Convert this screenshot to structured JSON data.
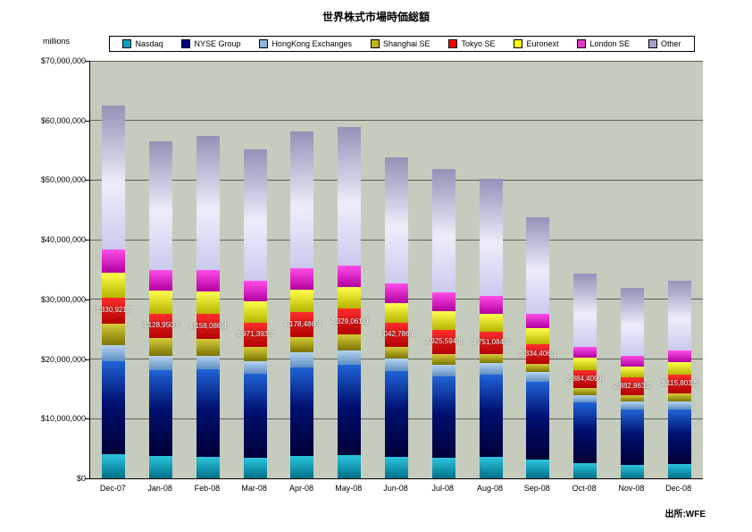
{
  "page": {
    "title": "世界株式市場時価総額",
    "unit_label": "millions",
    "source_note": "出所:WFE"
  },
  "legend": {
    "items": [
      {
        "id": "nasdaq",
        "label": "Nasdaq",
        "color": "#00A5C0"
      },
      {
        "id": "nyse-group",
        "label": "NYSE Group",
        "color": "#000080"
      },
      {
        "id": "hongkong-exchanges",
        "label": "HongKong Exchanges",
        "color": "#8DB4E2"
      },
      {
        "id": "shanghai-se",
        "label": "Shanghai SE",
        "color": "#BDB520"
      },
      {
        "id": "tokyo-se",
        "label": "Tokyo SE",
        "color": "#FF0000"
      },
      {
        "id": "euronext",
        "label": "Euronext",
        "color": "#FFFF00"
      },
      {
        "id": "london-se",
        "label": "London SE",
        "color": "#E23BC8"
      },
      {
        "id": "other",
        "label": "Other",
        "color": "#A3A3CC"
      }
    ]
  },
  "chart_data": {
    "type": "bar",
    "stacked": true,
    "title": "世界株式市場時価総額",
    "xlabel": "",
    "ylabel": "millions",
    "ylim": [
      0,
      70000000
    ],
    "grid": true,
    "legend_position": "top",
    "plot_bg_color": "#C6CCBD",
    "ytick_values": [
      0,
      10000000,
      20000000,
      30000000,
      40000000,
      50000000,
      60000000,
      70000000
    ],
    "ytick_labels": [
      "$0",
      "$10,000,000",
      "$20,000,000",
      "$30,000,000",
      "$40,000,000",
      "$50,000,000",
      "$60,000,000",
      "$70,000,000"
    ],
    "categories": [
      "Dec-07",
      "Jan-08",
      "Feb-08",
      "Mar-08",
      "Apr-08",
      "May-08",
      "Jun-08",
      "Jul-08",
      "Aug-08",
      "Sep-08",
      "Oct-08",
      "Nov-08",
      "Dec-08"
    ],
    "series": [
      {
        "name": "Nasdaq",
        "gradient": [
          "#006F87 0%",
          "#2CC5DF 100%"
        ],
        "values": [
          4000000,
          3700000,
          3600000,
          3500000,
          3800000,
          3900000,
          3600000,
          3500000,
          3600000,
          3200000,
          2500000,
          2300000,
          2400000
        ]
      },
      {
        "name": "NYSE Group",
        "gradient": [
          "#000038 0%",
          "#001070 55%",
          "#2063D6 100%"
        ],
        "values": [
          15650000,
          14500000,
          14700000,
          14100000,
          14800000,
          15200000,
          14400000,
          13600000,
          13800000,
          13000000,
          10200000,
          9300000,
          9200000
        ]
      },
      {
        "name": "HongKong Exchanges",
        "gradient": [
          "#5E8FC4 0%",
          "#B6D3EE 100%"
        ],
        "values": [
          2650000,
          2300000,
          2300000,
          2100000,
          2500000,
          2400000,
          2100000,
          2000000,
          1900000,
          1600000,
          1300000,
          1300000,
          1300000
        ]
      },
      {
        "name": "Shanghai SE",
        "gradient": [
          "#7A7400 0%",
          "#D6CC3A 100%"
        ],
        "values": [
          3700000,
          3000000,
          2800000,
          2400000,
          2600000,
          2600000,
          2000000,
          1800000,
          1600000,
          1400000,
          1200000,
          1100000,
          1400000
        ]
      },
      {
        "name": "Tokyo SE",
        "gradient": [
          "#B20000 0%",
          "#FF2D2D 100%"
        ],
        "values": [
          4330921.7,
          4128950.5,
          4158086.4,
          3971393.7,
          4178486.4,
          4329061.9,
          4042786.6,
          3925594.5,
          3751084.8,
          3334406.1,
          2884409.6,
          2882863.2,
          3115803.5
        ]
      },
      {
        "name": "Euronext",
        "gradient": [
          "#B5B500 0%",
          "#FFFF4D 100%"
        ],
        "values": [
          4200000,
          3800000,
          3800000,
          3600000,
          3700000,
          3700000,
          3300000,
          3200000,
          3000000,
          2600000,
          2100000,
          1900000,
          2100000
        ]
      },
      {
        "name": "London SE",
        "gradient": [
          "#B1009F 0%",
          "#FF4DE8 100%"
        ],
        "values": [
          3850000,
          3500000,
          3600000,
          3400000,
          3600000,
          3600000,
          3200000,
          3100000,
          2900000,
          2400000,
          1900000,
          1800000,
          1900000
        ]
      },
      {
        "name": "Other",
        "gradient": [
          "#CACAEE 0%",
          "#EDEDFA 45%",
          "#9292B8 100%"
        ],
        "values": [
          24100000,
          21600000,
          22500000,
          22100000,
          23000000,
          23200000,
          21200000,
          20700000,
          19600000,
          16300000,
          12300000,
          11400000,
          11700000
        ]
      }
    ],
    "data_labels": {
      "series": "Tokyo SE",
      "values": [
        "4,330,921.7",
        "4,128,950.5",
        "4,158,086.4",
        "3,971,393.7",
        "4,178,486.4",
        "4,329,061.9",
        "4,042,786.6",
        "3,925,594.5",
        "3,751,084.8",
        "3,334,406.1",
        "2,884,409.6",
        "2,882,863.2",
        "3,115,803.5"
      ]
    }
  }
}
